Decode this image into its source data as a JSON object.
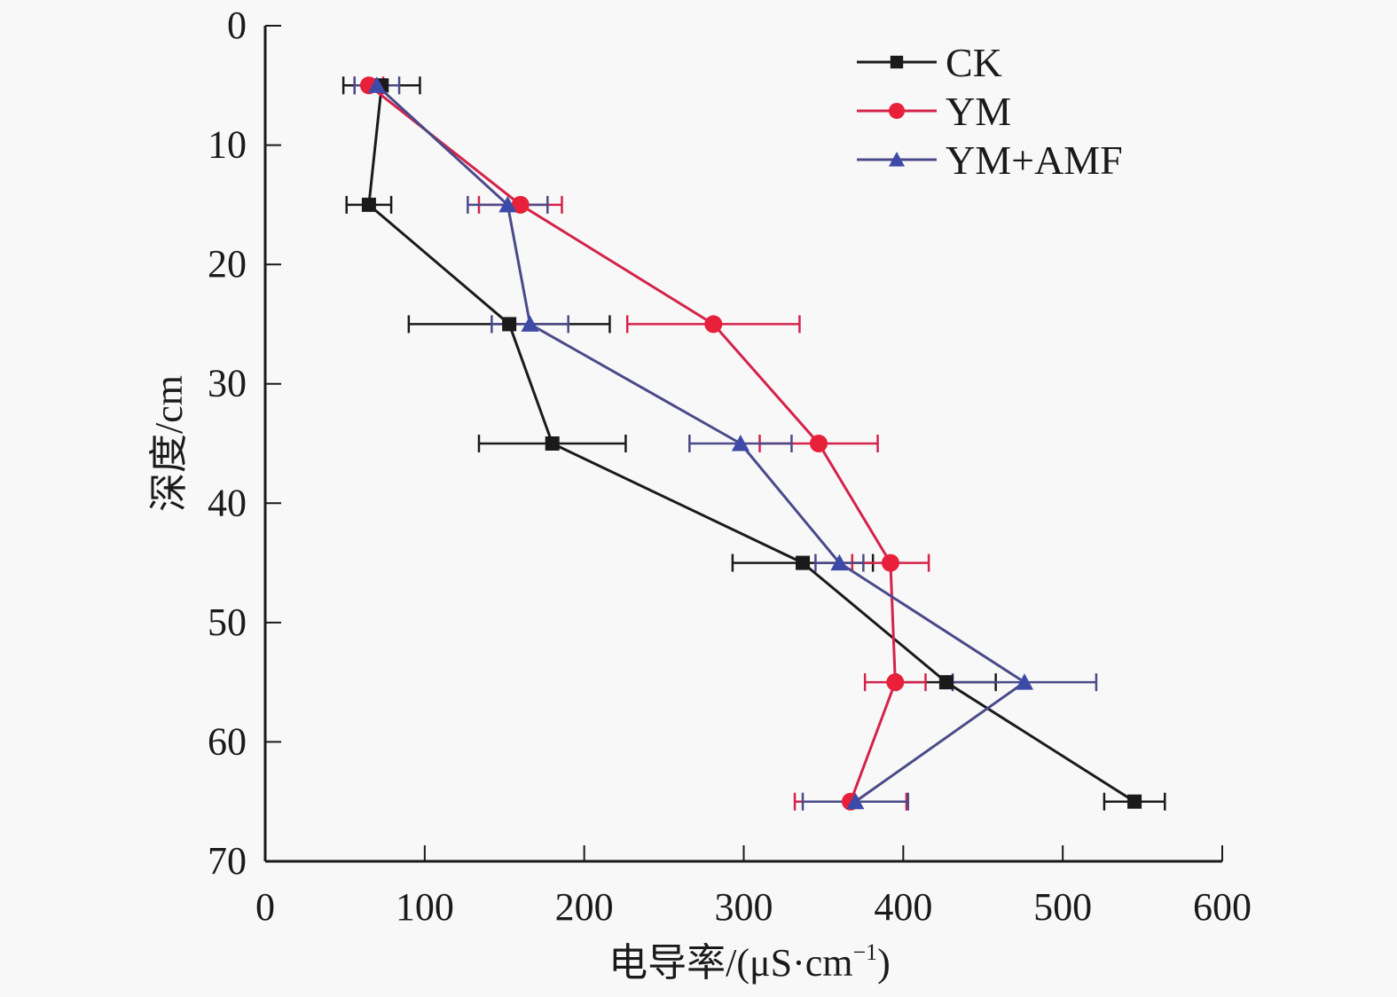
{
  "chart_data": {
    "type": "line",
    "orientation": "depth-profile",
    "title": "",
    "xlabel": "电导率/(μS·cm⁻¹)",
    "xlabel_main": "电导率/(μS·cm",
    "xlabel_sup": "−1",
    "xlabel_close": ")",
    "ylabel": "深度/cm",
    "xlim": [
      0,
      600
    ],
    "ylim": [
      0,
      70
    ],
    "y_inverted": true,
    "x_ticks": [
      0,
      100,
      200,
      300,
      400,
      500,
      600
    ],
    "x_tick_labels": [
      "0",
      "100",
      "200",
      "300",
      "400",
      "500",
      "600"
    ],
    "y_ticks": [
      0,
      10,
      20,
      30,
      40,
      50,
      60,
      70
    ],
    "y_tick_labels": [
      "0",
      "10",
      "20",
      "30",
      "40",
      "50",
      "60",
      "70"
    ],
    "grid": false,
    "legend_position": "top-right",
    "depths": [
      5,
      15,
      25,
      35,
      45,
      55,
      65
    ],
    "series": [
      {
        "name": "CK",
        "marker": "square",
        "color": "#1a1a1a",
        "values": [
          73,
          65,
          153,
          180,
          337,
          427,
          545
        ],
        "errors": [
          24,
          14,
          63,
          46,
          44,
          31,
          19
        ]
      },
      {
        "name": "YM",
        "marker": "circle",
        "color": "#e8203a",
        "line_color": "#d4234a",
        "values": [
          65,
          160,
          281,
          347,
          392,
          395,
          367
        ],
        "errors": [
          9,
          26,
          54,
          37,
          24,
          19,
          35
        ]
      },
      {
        "name": "YM+AMF",
        "marker": "triangle",
        "color": "#3d4aa8",
        "line_color": "#4a4a8a",
        "values": [
          70,
          152,
          166,
          298,
          360,
          476,
          370
        ],
        "errors": [
          14,
          25,
          24,
          32,
          15,
          45,
          33
        ]
      }
    ]
  }
}
